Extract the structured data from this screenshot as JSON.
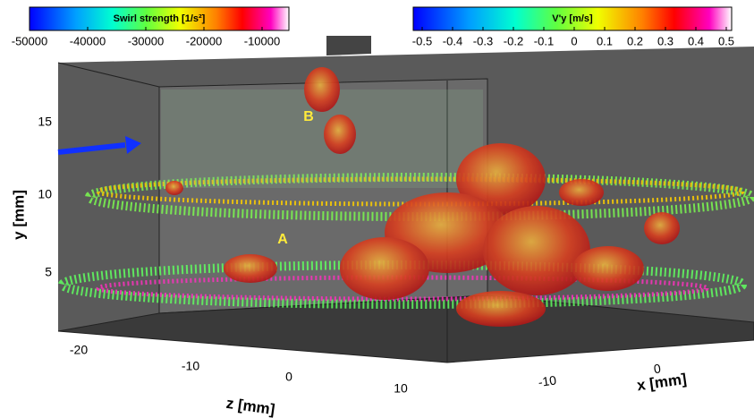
{
  "colorbars": [
    {
      "title": "Swirl strength [1/s²]",
      "ticks": [
        -50000,
        -40000,
        -30000,
        -20000,
        -10000
      ]
    },
    {
      "title": "V'y [m/s]",
      "ticks": [
        -0.5,
        -0.4,
        -0.3,
        -0.2,
        -0.1,
        0,
        0.1,
        0.2,
        0.3,
        0.4,
        0.5
      ]
    }
  ],
  "axes": {
    "y": {
      "label": "y [mm]",
      "ticks": [
        15,
        10,
        5
      ]
    },
    "z": {
      "label": "z [mm]",
      "ticks": [
        -20,
        -10,
        0,
        10
      ]
    },
    "x": {
      "label": "x [mm]",
      "ticks": [
        -10,
        0
      ]
    }
  },
  "annotations": [
    "A",
    "B"
  ]
}
